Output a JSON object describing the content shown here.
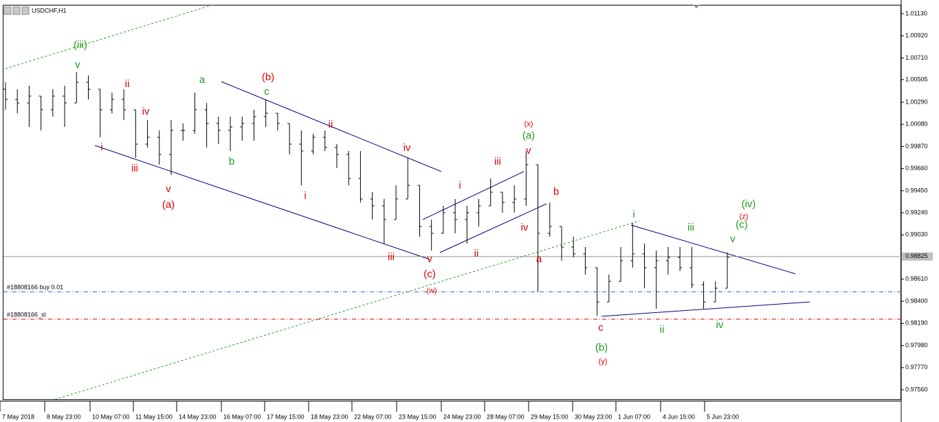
{
  "chart_data": {
    "type": "ohlc",
    "title": "USDCHF,H1",
    "ylim": [
      0.97469,
      1.01208
    ],
    "yticks": [
      {
        "value": 1.0113,
        "label": "1.01130"
      },
      {
        "value": 1.0092,
        "label": "1.00920"
      },
      {
        "value": 1.0071,
        "label": "1.00710"
      },
      {
        "value": 1.00505,
        "label": "1.00505"
      },
      {
        "value": 1.0029,
        "label": "1.00290"
      },
      {
        "value": 1.0008,
        "label": "1.00080"
      },
      {
        "value": 0.9987,
        "label": "0.99870"
      },
      {
        "value": 0.9966,
        "label": "0.99660"
      },
      {
        "value": 0.9945,
        "label": "0.99450"
      },
      {
        "value": 0.9924,
        "label": "0.99240"
      },
      {
        "value": 0.9903,
        "label": "0.99030"
      },
      {
        "value": 0.9861,
        "label": "0.98610"
      },
      {
        "value": 0.984,
        "label": "0.98400"
      },
      {
        "value": 0.9819,
        "label": "0.98190"
      },
      {
        "value": 0.9798,
        "label": "0.97980"
      },
      {
        "value": 0.9777,
        "label": "0.97770"
      },
      {
        "value": 0.9756,
        "label": "0.97560"
      }
    ],
    "current_price": {
      "value": 0.98825,
      "label": "0.98825"
    },
    "order_lines": [
      {
        "label": "#18808166 buy 0.01",
        "value": 0.9849,
        "color": "#1e64c8"
      },
      {
        "label": "#18808166_sl",
        "value": 0.9823,
        "color": "#e00000"
      }
    ],
    "time_labels": [
      "7 May 2018",
      "8 May 23:00",
      "10 May 07:00",
      "11 May 15:00",
      "14 May 23:00",
      "16 May 07:00",
      "17 May 15:00",
      "18 May 23:00",
      "22 May 07:00",
      "23 May 15:00",
      "24 May 23:00",
      "28 May 07:00",
      "29 May 15:00",
      "30 May 23:00",
      "1 Jun 07:00",
      "4 Jun 15:00",
      "5 Jun 23:00"
    ],
    "bar_color": "#000000",
    "open": [
      1.00413,
      1.00316,
      1.00283,
      1.00348,
      1.00218,
      1.00348,
      1.00283,
      1.00479,
      1.00413,
      1.00218,
      1.00316,
      1.00218,
      0.99892,
      0.99957,
      0.99794,
      1.00022,
      1.00022,
      1.00218,
      1.00088,
      1.00022,
      1.00055,
      1.00088,
      1.00153,
      1.00185,
      1.00088,
      0.99892,
      0.99827,
      0.99957,
      0.9986,
      0.99794,
      0.99566,
      0.99371,
      0.99306,
      0.99176,
      0.99371,
      0.99501,
      0.9911,
      0.99045,
      0.99241,
      0.99176,
      0.99241,
      0.99306,
      0.99436,
      0.99338,
      0.99371,
      0.99697,
      0.99045,
      0.9911,
      0.98915,
      0.9885,
      0.98719,
      0.98394,
      0.98589,
      0.98785,
      0.9885,
      0.98719,
      0.98785,
      0.98817,
      0.98719,
      0.98557,
      0.98394,
      0.98524
    ],
    "high": [
      1.00479,
      1.00413,
      1.00446,
      1.00348,
      1.00413,
      1.00446,
      1.00576,
      1.00544,
      1.00413,
      1.00381,
      1.00413,
      1.00218,
      1.0012,
      1.00022,
      1.0012,
      1.00088,
      1.00381,
      1.00283,
      1.00153,
      1.00153,
      1.00153,
      1.00218,
      1.00316,
      1.00185,
      1.00088,
      1.00022,
      0.9999,
      1.00022,
      0.99892,
      0.99827,
      0.99827,
      0.99436,
      0.99371,
      0.99501,
      0.99762,
      0.99501,
      0.99176,
      0.99306,
      0.99371,
      0.99306,
      0.99371,
      0.99566,
      0.99436,
      0.99501,
      0.99827,
      0.99697,
      0.99338,
      0.9911,
      0.99013,
      0.98915,
      0.98719,
      0.98654,
      0.98915,
      0.99143,
      0.98948,
      0.98882,
      0.98915,
      0.98915,
      0.98915,
      0.98589,
      0.98589,
      0.98863
    ],
    "low": [
      1.00218,
      1.00185,
      1.00055,
      1.00022,
      1.00153,
      1.00055,
      1.00283,
      1.00316,
      0.99957,
      1.00185,
      1.0012,
      0.99762,
      0.9986,
      0.99697,
      0.99599,
      0.99925,
      0.9999,
      0.9986,
      0.99892,
      0.99827,
      0.99925,
      0.99925,
      1.00055,
      1.00022,
      0.99794,
      0.99501,
      0.99794,
      0.99827,
      0.99664,
      0.99501,
      0.99338,
      0.99176,
      0.98948,
      0.99176,
      0.99371,
      0.99013,
      0.98882,
      0.99045,
      0.99045,
      0.98948,
      0.9911,
      0.99306,
      0.99241,
      0.99241,
      0.99306,
      0.98491,
      0.99013,
      0.98785,
      0.98817,
      0.98654,
      0.98263,
      0.98394,
      0.98589,
      0.98719,
      0.98524,
      0.98329,
      0.98654,
      0.98687,
      0.98524,
      0.98329,
      0.98394,
      0.98524
    ],
    "close": [
      1.00316,
      1.00283,
      1.00348,
      1.00218,
      1.00348,
      1.00283,
      1.00479,
      1.00413,
      1.00218,
      1.00316,
      1.00218,
      0.99892,
      0.99957,
      0.99794,
      1.00022,
      1.00022,
      1.00218,
      1.00088,
      1.00022,
      1.00055,
      1.00088,
      1.00153,
      1.00185,
      1.00088,
      0.99892,
      0.99827,
      0.99957,
      0.9986,
      0.99794,
      0.99566,
      0.99371,
      0.99306,
      0.99176,
      0.99371,
      0.99501,
      0.9911,
      0.99045,
      0.99241,
      0.99176,
      0.99241,
      0.99306,
      0.99436,
      0.99338,
      0.99371,
      0.99697,
      0.99045,
      0.9911,
      0.98915,
      0.9885,
      0.98719,
      0.98394,
      0.98589,
      0.98785,
      0.9885,
      0.98719,
      0.98785,
      0.98817,
      0.98719,
      0.98557,
      0.98394,
      0.98524,
      0.98817
    ],
    "annotations": [
      {
        "text": "(iii)",
        "color": "#1e9c1e"
      },
      {
        "text": "v",
        "color": "#1e9c1e"
      },
      {
        "text": "ii",
        "color": "#e00000"
      },
      {
        "text": "iv",
        "color": "#e00000"
      },
      {
        "text": "i",
        "color": "#e00000"
      },
      {
        "text": "iii",
        "color": "#e00000"
      },
      {
        "text": "v",
        "color": "#e00000"
      },
      {
        "text": "(a)",
        "color": "#e00000"
      },
      {
        "text": "a",
        "color": "#1e9c1e"
      },
      {
        "text": "b",
        "color": "#1e9c1e"
      },
      {
        "text": "c",
        "color": "#1e9c1e"
      },
      {
        "text": "(b)",
        "color": "#e00000"
      },
      {
        "text": "ii",
        "color": "#e00000"
      },
      {
        "text": "i",
        "color": "#e00000"
      },
      {
        "text": "iv",
        "color": "#e00000"
      },
      {
        "text": "iii",
        "color": "#e00000"
      },
      {
        "text": "v",
        "color": "#e00000"
      },
      {
        "text": "(c)",
        "color": "#e00000"
      },
      {
        "text": "(w)",
        "color": "#e00000"
      },
      {
        "text": "i",
        "color": "#e00000"
      },
      {
        "text": "ii",
        "color": "#e00000"
      },
      {
        "text": "iii",
        "color": "#e00000"
      },
      {
        "text": "iv",
        "color": "#e00000"
      },
      {
        "text": "(x)",
        "color": "#e00000"
      },
      {
        "text": "(a)",
        "color": "#1e9c1e"
      },
      {
        "text": "v",
        "color": "#e00000"
      },
      {
        "text": "b",
        "color": "#e00000"
      },
      {
        "text": "a",
        "color": "#e00000"
      },
      {
        "text": "c",
        "color": "#e00000"
      },
      {
        "text": "(b)",
        "color": "#1e9c1e"
      },
      {
        "text": "(y)",
        "color": "#e00000"
      },
      {
        "text": "i",
        "color": "#1e9c1e"
      },
      {
        "text": "ii",
        "color": "#1e9c1e"
      },
      {
        "text": "iii",
        "color": "#1e9c1e"
      },
      {
        "text": "iv",
        "color": "#1e9c1e"
      },
      {
        "text": "v",
        "color": "#1e9c1e"
      },
      {
        "text": "(iv)",
        "color": "#1e9c1e"
      },
      {
        "text": "(z)",
        "color": "#e00000"
      },
      {
        "text": "(c)",
        "color": "#1e9c1e"
      }
    ]
  }
}
